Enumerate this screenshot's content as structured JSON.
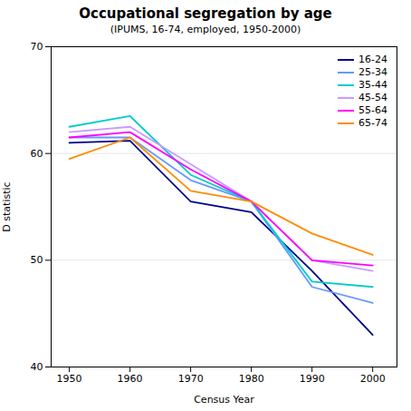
{
  "chart_data": {
    "type": "line",
    "title": "Occupational segregation by age",
    "subtitle": "(IPUMS, 16-74, employed, 1950-2000)",
    "xlabel": "Census Year",
    "ylabel": "D statistic",
    "x": [
      1950,
      1960,
      1970,
      1980,
      1990,
      2000
    ],
    "series": [
      {
        "name": "16-24",
        "color": "#00008B",
        "values": [
          61.0,
          61.2,
          55.5,
          54.5,
          49.0,
          43.0
        ]
      },
      {
        "name": "25-34",
        "color": "#6699FF",
        "values": [
          61.5,
          61.5,
          57.5,
          55.5,
          47.5,
          46.0
        ]
      },
      {
        "name": "35-44",
        "color": "#00CCCC",
        "values": [
          62.5,
          63.5,
          58.0,
          55.5,
          48.0,
          47.5
        ]
      },
      {
        "name": "45-54",
        "color": "#CC99FF",
        "values": [
          62.0,
          62.5,
          59.0,
          55.5,
          50.0,
          49.0
        ]
      },
      {
        "name": "55-64",
        "color": "#FF00FF",
        "values": [
          61.5,
          62.0,
          58.5,
          55.5,
          50.0,
          49.5
        ]
      },
      {
        "name": "65-74",
        "color": "#FF8C00",
        "values": [
          59.5,
          61.5,
          56.5,
          55.5,
          52.5,
          50.5
        ]
      }
    ],
    "xlim": [
      1947,
      2004
    ],
    "xticks": [
      1950,
      1960,
      1970,
      1980,
      1990,
      2000
    ],
    "ylim": [
      40,
      70
    ],
    "yticks": [
      40,
      50,
      60,
      70
    ],
    "grid": "y",
    "legend": "upper right"
  }
}
